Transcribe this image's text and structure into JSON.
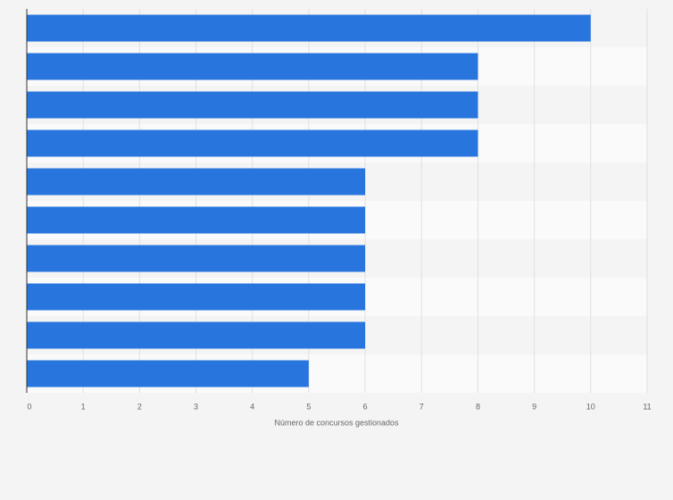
{
  "chart_data": {
    "type": "bar",
    "orientation": "horizontal",
    "categories": [
      null,
      null,
      null,
      null,
      null,
      null,
      null,
      null,
      null,
      null
    ],
    "values": [
      10,
      8,
      8,
      8,
      6,
      6,
      6,
      6,
      6,
      5
    ],
    "color": "#2876dd",
    "xlim": [
      0,
      11
    ],
    "xticks": [
      0,
      1,
      2,
      3,
      4,
      5,
      6,
      7,
      8,
      9,
      10,
      11
    ],
    "xlabel": "Número de concursos gestionados",
    "grid": true
  }
}
